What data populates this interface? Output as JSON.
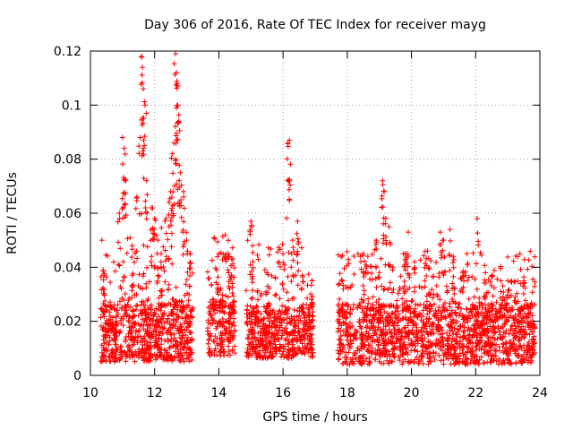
{
  "chart_data": {
    "type": "scatter",
    "title": "Day 306 of 2016, Rate Of TEC Index for receiver mayg",
    "xlabel": "GPS time / hours",
    "ylabel": "ROTI / TECUs",
    "xlim": [
      10,
      24
    ],
    "ylim": [
      0,
      0.12
    ],
    "xticks": [
      10,
      12,
      14,
      16,
      18,
      20,
      22,
      24
    ],
    "xtick_labels": [
      "10",
      "12",
      "14",
      "16",
      "18",
      "20",
      "22",
      "24"
    ],
    "yticks": [
      0,
      0.02,
      0.04,
      0.06,
      0.08,
      0.1,
      0.12
    ],
    "ytick_labels": [
      "0",
      "0.02",
      "0.04",
      "0.06",
      "0.08",
      "0.1",
      "0.12"
    ],
    "grid": true,
    "marker": "+",
    "color": "#ff0000",
    "series": [
      {
        "name": "ROTI",
        "segments": [
          {
            "x_start": 10.3,
            "x_end": 13.2,
            "base": [
              0.005,
              0.026
            ],
            "spread_max": 0.055
          },
          {
            "x_start": 13.65,
            "x_end": 14.5,
            "base": [
              0.007,
              0.028
            ],
            "spread_max": 0.052
          },
          {
            "x_start": 14.85,
            "x_end": 16.95,
            "base": [
              0.006,
              0.025
            ],
            "spread_max": 0.05
          },
          {
            "x_start": 17.7,
            "x_end": 23.85,
            "base": [
              0.004,
              0.026
            ],
            "spread_max": 0.046
          }
        ],
        "peaks": [
          {
            "x": 10.4,
            "y": 0.039
          },
          {
            "x": 10.9,
            "y": 0.06
          },
          {
            "x": 11.0,
            "y": 0.088
          },
          {
            "x": 11.05,
            "y": 0.084
          },
          {
            "x": 11.1,
            "y": 0.072
          },
          {
            "x": 11.3,
            "y": 0.048
          },
          {
            "x": 11.45,
            "y": 0.066
          },
          {
            "x": 11.55,
            "y": 0.088
          },
          {
            "x": 11.6,
            "y": 0.118
          },
          {
            "x": 11.62,
            "y": 0.114
          },
          {
            "x": 11.65,
            "y": 0.106
          },
          {
            "x": 11.7,
            "y": 0.1
          },
          {
            "x": 11.75,
            "y": 0.072
          },
          {
            "x": 11.9,
            "y": 0.062
          },
          {
            "x": 12.0,
            "y": 0.058
          },
          {
            "x": 12.1,
            "y": 0.05
          },
          {
            "x": 12.2,
            "y": 0.045
          },
          {
            "x": 12.35,
            "y": 0.058
          },
          {
            "x": 12.45,
            "y": 0.064
          },
          {
            "x": 12.5,
            "y": 0.068
          },
          {
            "x": 12.55,
            "y": 0.082
          },
          {
            "x": 12.6,
            "y": 0.086
          },
          {
            "x": 12.65,
            "y": 0.119
          },
          {
            "x": 12.68,
            "y": 0.112
          },
          {
            "x": 12.7,
            "y": 0.108
          },
          {
            "x": 12.72,
            "y": 0.1
          },
          {
            "x": 12.75,
            "y": 0.094
          },
          {
            "x": 12.8,
            "y": 0.075
          },
          {
            "x": 12.9,
            "y": 0.068
          },
          {
            "x": 13.0,
            "y": 0.05
          },
          {
            "x": 13.1,
            "y": 0.045
          },
          {
            "x": 14.0,
            "y": 0.045
          },
          {
            "x": 14.2,
            "y": 0.052
          },
          {
            "x": 14.4,
            "y": 0.043
          },
          {
            "x": 15.0,
            "y": 0.057
          },
          {
            "x": 15.05,
            "y": 0.048
          },
          {
            "x": 15.5,
            "y": 0.038
          },
          {
            "x": 16.0,
            "y": 0.045
          },
          {
            "x": 16.15,
            "y": 0.086
          },
          {
            "x": 16.2,
            "y": 0.087
          },
          {
            "x": 16.3,
            "y": 0.05
          },
          {
            "x": 16.45,
            "y": 0.057
          },
          {
            "x": 16.6,
            "y": 0.037
          },
          {
            "x": 16.9,
            "y": 0.035
          },
          {
            "x": 18.5,
            "y": 0.045
          },
          {
            "x": 18.9,
            "y": 0.05
          },
          {
            "x": 19.1,
            "y": 0.072
          },
          {
            "x": 19.15,
            "y": 0.068
          },
          {
            "x": 19.2,
            "y": 0.058
          },
          {
            "x": 19.3,
            "y": 0.055
          },
          {
            "x": 19.8,
            "y": 0.045
          },
          {
            "x": 19.9,
            "y": 0.053
          },
          {
            "x": 20.1,
            "y": 0.042
          },
          {
            "x": 20.5,
            "y": 0.046
          },
          {
            "x": 20.9,
            "y": 0.053
          },
          {
            "x": 21.0,
            "y": 0.05
          },
          {
            "x": 21.2,
            "y": 0.054
          },
          {
            "x": 21.3,
            "y": 0.044
          },
          {
            "x": 21.6,
            "y": 0.038
          },
          {
            "x": 22.05,
            "y": 0.058
          },
          {
            "x": 22.3,
            "y": 0.038
          },
          {
            "x": 22.5,
            "y": 0.037
          },
          {
            "x": 23.0,
            "y": 0.035
          },
          {
            "x": 23.5,
            "y": 0.035
          }
        ]
      }
    ]
  }
}
